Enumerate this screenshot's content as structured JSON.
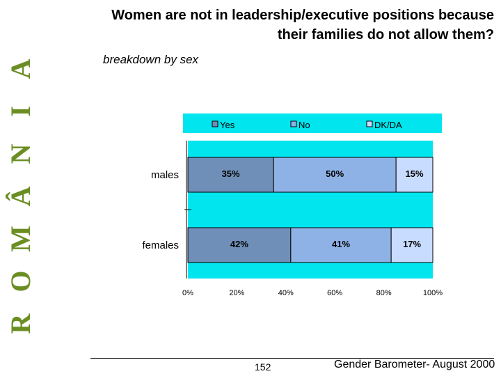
{
  "side_banner": [
    "R",
    "O",
    "M",
    "Â",
    "N",
    "I",
    "A"
  ],
  "header": {
    "title_line1": "Women are not in leadership/executive positions because",
    "title_line2": "their families do not allow them?",
    "subtitle": "breakdown by sex"
  },
  "chart_data": {
    "type": "bar",
    "orientation": "horizontal",
    "stacked": true,
    "categories": [
      "males",
      "females"
    ],
    "series": [
      {
        "name": "Yes",
        "values": [
          35,
          42
        ]
      },
      {
        "name": "No",
        "values": [
          50,
          41
        ]
      },
      {
        "name": "DK/DA",
        "values": [
          15,
          17
        ]
      }
    ],
    "data_labels": [
      [
        "35%",
        "50%",
        "15%"
      ],
      [
        "42%",
        "41%",
        "17%"
      ]
    ],
    "xlim": [
      0,
      100
    ],
    "x_ticks": [
      "0%",
      "20%",
      "40%",
      "60%",
      "80%",
      "100%"
    ],
    "legend_position": "top",
    "colors": {
      "yes": "#6f8fb8",
      "no": "#8fb2e6",
      "dkda": "#c7dcff",
      "plot_bg": "#00e5ee",
      "legend_bg": "#00e5ee"
    }
  },
  "footer": {
    "page_number": "152",
    "source": "Gender Barometer- August 2000"
  }
}
